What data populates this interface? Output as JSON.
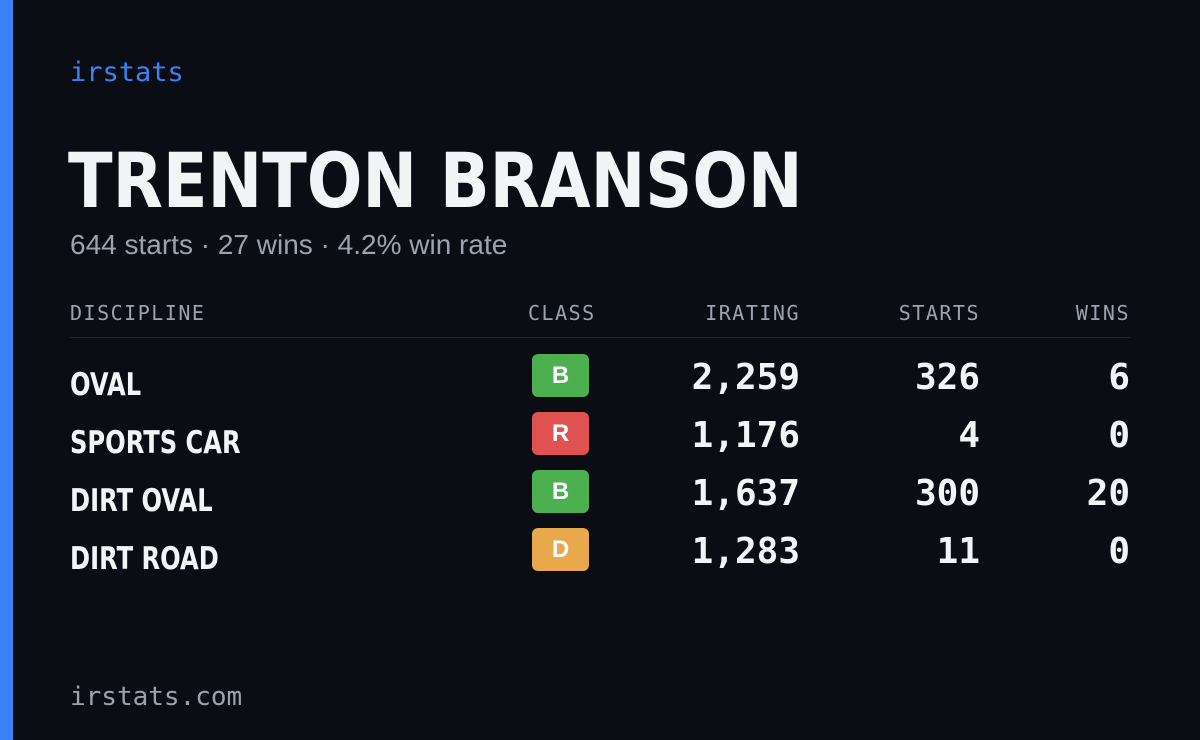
{
  "brand": "irstats",
  "player": {
    "name": "TRENTON BRANSON",
    "summary": "644 starts · 27 wins · 4.2% win rate"
  },
  "table": {
    "headers": {
      "discipline": "DISCIPLINE",
      "class": "CLASS",
      "irating": "IRATING",
      "starts": "STARTS",
      "wins": "WINS"
    },
    "rows": [
      {
        "discipline": "OVAL",
        "class": "B",
        "class_color": "#4caf50",
        "irating": "2,259",
        "starts": "326",
        "wins": "6"
      },
      {
        "discipline": "SPORTS CAR",
        "class": "R",
        "class_color": "#e05252",
        "irating": "1,176",
        "starts": "4",
        "wins": "0"
      },
      {
        "discipline": "DIRT OVAL",
        "class": "B",
        "class_color": "#4caf50",
        "irating": "1,637",
        "starts": "300",
        "wins": "20"
      },
      {
        "discipline": "DIRT ROAD",
        "class": "D",
        "class_color": "#e8a94c",
        "irating": "1,283",
        "starts": "11",
        "wins": "0"
      }
    ]
  },
  "footer": {
    "domain": "irstats.com"
  },
  "colors": {
    "background": "#0b0d14",
    "accent": "#3b82f6",
    "text": "#f3f4f6",
    "muted": "#9ca3af"
  }
}
